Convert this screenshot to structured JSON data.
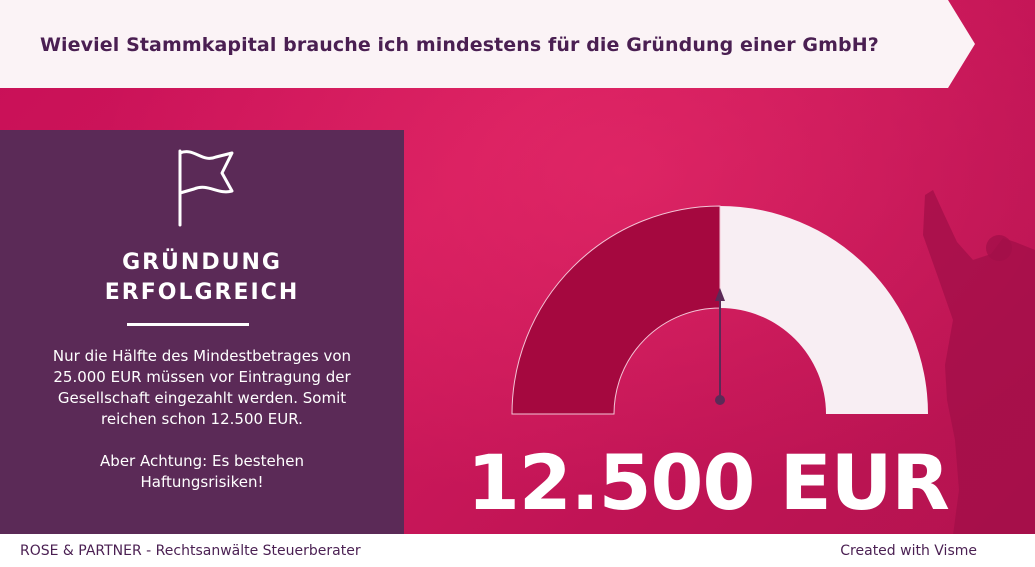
{
  "header": {
    "title": "Wieviel Stammkapital brauche ich mindestens für die Gründung einer GmbH?"
  },
  "panel": {
    "icon": "flag-icon",
    "heading_line1": "GRÜNDUNG",
    "heading_line2": "ERFOLGREICH",
    "paragraph1_line1": "Nur die Hälfte des Mindestbetrages von",
    "paragraph1_line2": "25.000 EUR müssen vor Eintragung der",
    "paragraph1_line3": "Gesellschaft eingezahlt werden. Somit",
    "paragraph1_line4": "reichen schon 12.500 EUR.",
    "paragraph2_line1": "Aber Achtung: Es bestehen",
    "paragraph2_line2": "Haftungsrisiken!"
  },
  "gauge": {
    "fraction": 0.5,
    "filled_color": "#a5083f",
    "empty_color": "#f8eef3",
    "needle_color": "#5b2a57"
  },
  "amount": "12.500 EUR",
  "footer": {
    "left_text": "ROSE & PARTNER - Rechtsanwälte Steuerberater",
    "right_text": "Created with Visme"
  },
  "colors": {
    "background": "#c5135a",
    "panel": "#5b2a57",
    "title_text": "#4a1f52"
  }
}
